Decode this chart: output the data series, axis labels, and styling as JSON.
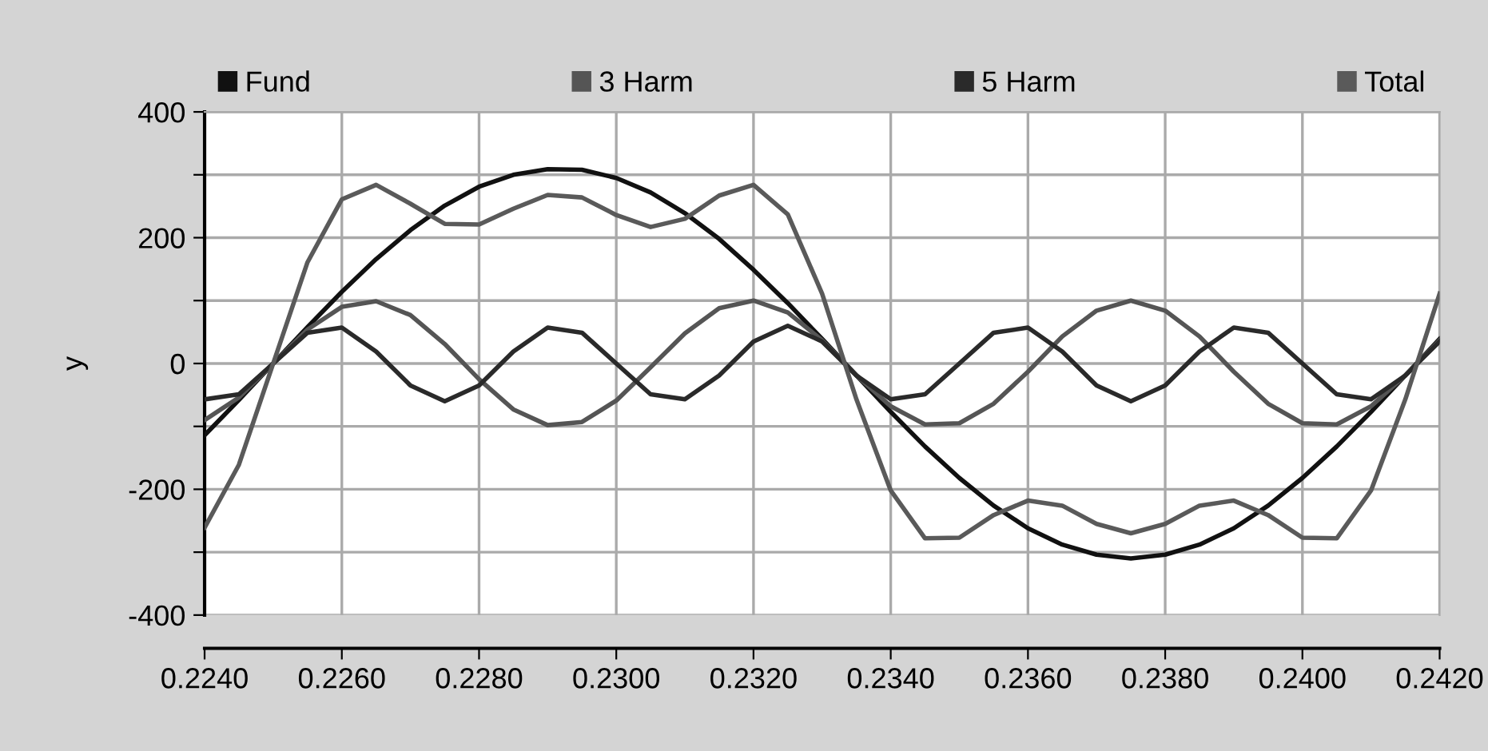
{
  "chart_data": {
    "type": "line",
    "ylabel": "y",
    "x": [
      0.224,
      0.2245,
      0.225,
      0.2255,
      0.226,
      0.2265,
      0.227,
      0.2275,
      0.228,
      0.2285,
      0.229,
      0.2295,
      0.23,
      0.2305,
      0.231,
      0.2315,
      0.232,
      0.2325,
      0.233,
      0.2335,
      0.234,
      0.2345,
      0.235,
      0.2355,
      0.236,
      0.2365,
      0.237,
      0.2375,
      0.238,
      0.2385,
      0.239,
      0.2395,
      0.24,
      0.2405,
      0.241,
      0.2415,
      0.242
    ],
    "series": [
      {
        "name": "Fund",
        "color": "#111111",
        "values": [
          -114,
          -58,
          0,
          58,
          114,
          166,
          212,
          251,
          281,
          300,
          309,
          308,
          295,
          272,
          239,
          198,
          149,
          96,
          39,
          -19,
          -77,
          -132,
          -182,
          -226,
          -262,
          -288,
          -304,
          -310,
          -304,
          -288,
          -262,
          -226,
          -182,
          -132,
          -77,
          -19,
          39
        ]
      },
      {
        "name": "3 Harm",
        "color": "#555555",
        "values": [
          -90,
          -54,
          0,
          54,
          90,
          99,
          77,
          31,
          -25,
          -73,
          -98,
          -93,
          -59,
          -6,
          48,
          88,
          100,
          81,
          37,
          -19,
          -68,
          -97,
          -95,
          -64,
          -13,
          43,
          84,
          100,
          84,
          43,
          -13,
          -64,
          -95,
          -97,
          -68,
          -19,
          37
        ]
      },
      {
        "name": "5 Harm",
        "color": "#2a2a2a",
        "values": [
          -57,
          -49,
          0,
          49,
          57,
          19,
          -35,
          -60,
          -35,
          19,
          57,
          49,
          0,
          -49,
          -57,
          -19,
          35,
          60,
          35,
          -19,
          -57,
          -49,
          0,
          49,
          57,
          19,
          -35,
          -60,
          -35,
          19,
          57,
          49,
          0,
          -49,
          -57,
          -19,
          35
        ]
      },
      {
        "name": "Total",
        "color": "#5a5a5a",
        "values": [
          -261,
          -161,
          0,
          161,
          261,
          284,
          254,
          222,
          221,
          246,
          268,
          264,
          236,
          217,
          230,
          267,
          284,
          237,
          111,
          -57,
          -202,
          -278,
          -277,
          -241,
          -218,
          -226,
          -255,
          -270,
          -255,
          -226,
          -218,
          -241,
          -277,
          -278,
          -202,
          -57,
          111
        ]
      }
    ],
    "xlim": [
      0.224,
      0.242
    ],
    "xticks": [
      {
        "value": 0.224,
        "label": "0.2240"
      },
      {
        "value": 0.226,
        "label": "0.2260"
      },
      {
        "value": 0.228,
        "label": "0.2280"
      },
      {
        "value": 0.23,
        "label": "0.2300"
      },
      {
        "value": 0.232,
        "label": "0.2320"
      },
      {
        "value": 0.234,
        "label": "0.2340"
      },
      {
        "value": 0.236,
        "label": "0.2360"
      },
      {
        "value": 0.238,
        "label": "0.2380"
      },
      {
        "value": 0.24,
        "label": "0.2400"
      },
      {
        "value": 0.242,
        "label": "0.2420"
      }
    ],
    "ylim": [
      -400,
      400
    ],
    "yticks": [
      -400,
      {
        "value": -300,
        "label": null
      },
      -200,
      {
        "value": -100,
        "label": null
      },
      0,
      {
        "value": 100,
        "label": null
      },
      200,
      {
        "value": 300,
        "label": null
      },
      400
    ],
    "grid": true,
    "legend": "top",
    "marker": "none",
    "line_style": "solid"
  }
}
